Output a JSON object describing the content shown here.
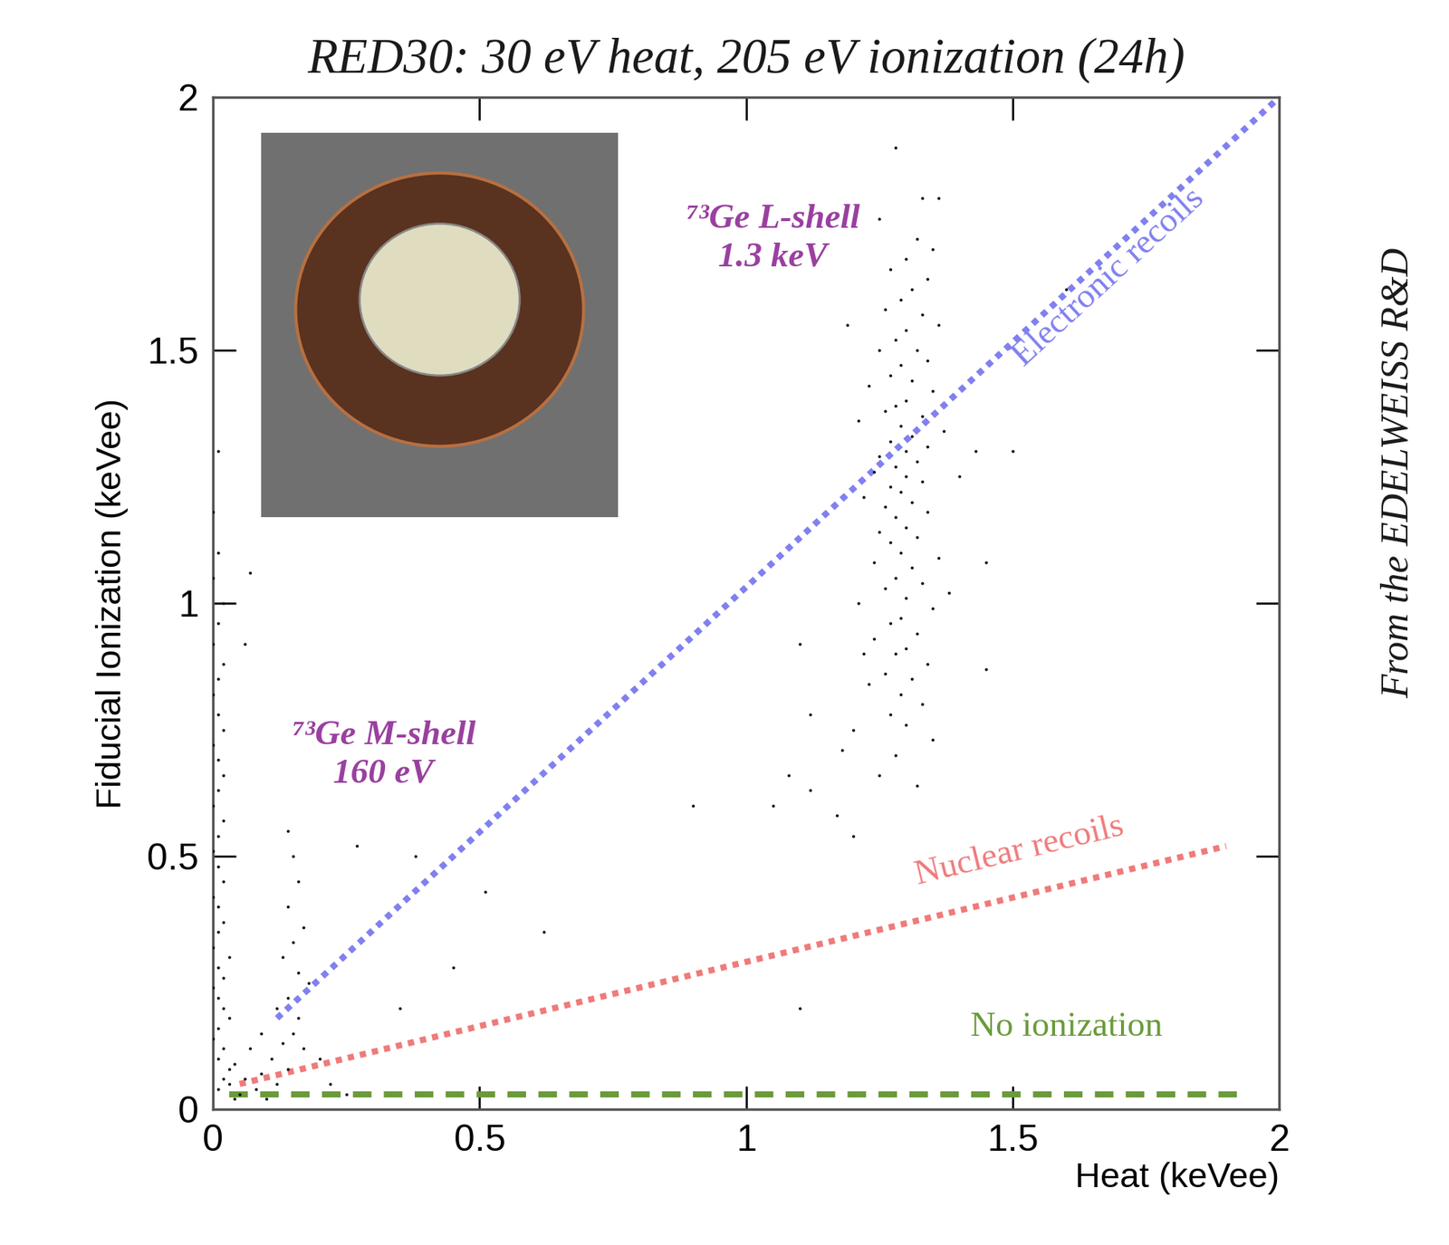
{
  "chart_data": {
    "type": "scatter",
    "title": "RED30: 30 eV heat, 205 eV ionization (24h)",
    "x_label": "Heat (keVee)",
    "y_label": "Fiducial Ionization (keVee)",
    "xlim": [
      0,
      2
    ],
    "ylim": [
      0,
      2
    ],
    "xticks": [
      0,
      0.5,
      1,
      1.5,
      2
    ],
    "yticks": [
      0,
      0.5,
      1,
      1.5,
      2
    ],
    "grid": false,
    "annotations": [
      "⁷³Ge L-shell\n1.3 keV",
      "⁷³Ge M-shell\n160 eV",
      "From the EDELWEISS R&D"
    ],
    "series": [
      {
        "type": "scatter",
        "color": "#000000",
        "marker": "o",
        "x": [
          1.28,
          1.33,
          1.32,
          1.35,
          1.3,
          1.27,
          1.34,
          1.31,
          1.29,
          1.26,
          1.33,
          1.36,
          1.3,
          1.28,
          1.25,
          1.32,
          1.34,
          1.29,
          1.27,
          1.31,
          1.23,
          1.35,
          1.3,
          1.28,
          1.26,
          1.33,
          1.21,
          1.29,
          1.31,
          1.27,
          1.34,
          1.3,
          1.25,
          1.32,
          1.28,
          1.24,
          1.3,
          1.33,
          1.27,
          1.29,
          1.22,
          1.31,
          1.26,
          1.34,
          1.28,
          1.3,
          1.25,
          1.32,
          1.27,
          1.29,
          1.36,
          1.24,
          1.31,
          1.28,
          1.33,
          1.26,
          1.3,
          1.21,
          1.35,
          1.29,
          1.27,
          1.32,
          1.24,
          1.3,
          1.28,
          1.34,
          1.26,
          1.31,
          1.23,
          1.29,
          1.33,
          1.27,
          1.3,
          1.2,
          1.35,
          1.28,
          1.25,
          1.32,
          1.18,
          1.38,
          1.4,
          1.19,
          1.37,
          1.22,
          1.36,
          1.25,
          1.1,
          1.12,
          1.08,
          1.12,
          1.17,
          1.2,
          1.05,
          1.45,
          1.45,
          1.6,
          1.1,
          0.9,
          1.43,
          1.5,
          0.27,
          0.38,
          0.51,
          0.45,
          0.35,
          0.14,
          0.07,
          0.06,
          0.62,
          0.15,
          0.16,
          0.14,
          0.17,
          0.15,
          0.13,
          0.16,
          0.18,
          0.14,
          0.12,
          0.16,
          0.15,
          0.13,
          0.17,
          0.11,
          0.14,
          0.09,
          0.12,
          0.08,
          0.1,
          0.06,
          0.07,
          0.09,
          0.2,
          0.22,
          0.25,
          0.05,
          0.04,
          0.01,
          0.0,
          0.02,
          0.01,
          0.0,
          0.02,
          0.01,
          0.0,
          0.01,
          0.02,
          0.0,
          0.01,
          0.02,
          0.01,
          0.0,
          0.02,
          0.01,
          0.0,
          0.01,
          0.02,
          0.0,
          0.01,
          0.02,
          0.01,
          0.0,
          0.03,
          0.01,
          0.02,
          0.0,
          0.01,
          0.02,
          0.03,
          0.01,
          0.0,
          0.02,
          0.01,
          0.03,
          0.02,
          0.01,
          0.04,
          0.0,
          0.01,
          0.03
        ],
        "values": [
          1.9,
          1.8,
          1.72,
          1.7,
          1.68,
          1.66,
          1.64,
          1.62,
          1.6,
          1.58,
          1.57,
          1.55,
          1.54,
          1.52,
          1.5,
          1.5,
          1.48,
          1.47,
          1.45,
          1.44,
          1.43,
          1.42,
          1.4,
          1.39,
          1.38,
          1.37,
          1.36,
          1.35,
          1.33,
          1.32,
          1.31,
          1.3,
          1.29,
          1.28,
          1.27,
          1.26,
          1.25,
          1.24,
          1.23,
          1.22,
          1.21,
          1.2,
          1.19,
          1.18,
          1.17,
          1.15,
          1.14,
          1.13,
          1.12,
          1.1,
          1.09,
          1.08,
          1.07,
          1.05,
          1.04,
          1.03,
          1.01,
          1.0,
          0.99,
          0.97,
          0.96,
          0.94,
          0.93,
          0.91,
          0.9,
          0.88,
          0.86,
          0.85,
          0.84,
          0.82,
          0.8,
          0.78,
          0.76,
          0.75,
          0.73,
          0.7,
          0.66,
          0.64,
          0.71,
          1.02,
          1.25,
          1.55,
          1.34,
          0.9,
          1.8,
          1.76,
          0.92,
          0.78,
          0.66,
          0.63,
          0.58,
          0.54,
          0.6,
          0.87,
          1.08,
          1.62,
          0.2,
          0.6,
          1.3,
          1.3,
          0.52,
          0.5,
          0.43,
          0.28,
          0.2,
          0.55,
          1.06,
          0.92,
          0.35,
          0.5,
          0.45,
          0.4,
          0.36,
          0.33,
          0.3,
          0.27,
          0.25,
          0.22,
          0.2,
          0.18,
          0.15,
          0.13,
          0.12,
          0.1,
          0.08,
          0.07,
          0.05,
          0.04,
          0.02,
          0.06,
          0.12,
          0.15,
          0.1,
          0.05,
          0.03,
          0.03,
          0.09,
          1.1,
          1.05,
          1.0,
          0.96,
          0.92,
          0.88,
          0.85,
          0.82,
          0.78,
          0.75,
          0.72,
          0.69,
          0.66,
          0.63,
          0.6,
          0.57,
          0.54,
          0.51,
          0.48,
          0.45,
          0.42,
          0.4,
          0.37,
          0.35,
          0.32,
          0.3,
          0.28,
          0.26,
          0.24,
          0.22,
          0.2,
          0.18,
          0.16,
          0.14,
          0.12,
          0.1,
          0.08,
          0.06,
          0.04,
          0.02,
          1.18,
          1.3,
          0.05
        ]
      },
      {
        "type": "line",
        "name": "Electronic recoils",
        "color": "#8080f0",
        "line_style": "dotted",
        "x": [
          0.12,
          2.0
        ],
        "values": [
          0.18,
          2.0
        ]
      },
      {
        "type": "line",
        "name": "Nuclear recoils",
        "color": "#f07a7a",
        "line_style": "dotted",
        "x": [
          0.05,
          1.9
        ],
        "values": [
          0.05,
          0.52
        ]
      },
      {
        "type": "line",
        "name": "No ionization",
        "color": "#6a9a3a",
        "line_style": "dashed",
        "x": [
          0.03,
          1.92
        ],
        "values": [
          0.03,
          0.03
        ]
      }
    ]
  }
}
